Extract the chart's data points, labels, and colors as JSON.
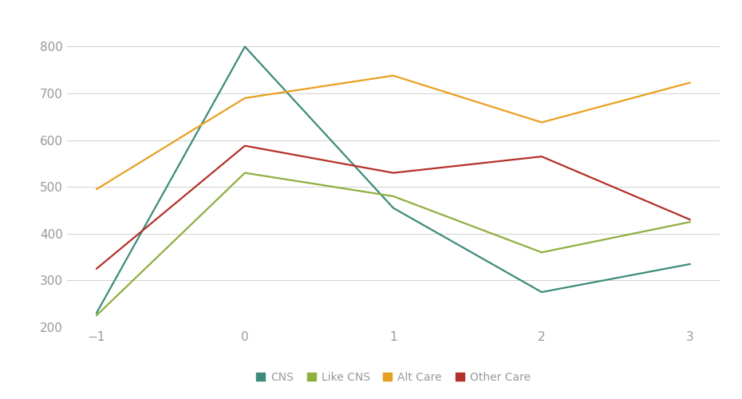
{
  "x": [
    -1,
    0,
    1,
    2,
    3
  ],
  "series": {
    "CNS": [
      230,
      800,
      455,
      275,
      335
    ],
    "Like CNS": [
      225,
      530,
      480,
      360,
      425
    ],
    "Alt Care": [
      495,
      690,
      738,
      638,
      723
    ],
    "Other Care": [
      325,
      588,
      530,
      565,
      430
    ]
  },
  "colors": {
    "CNS": "#3d8b7a",
    "Like CNS": "#8faf3e",
    "Alt Care": "#e8a020",
    "Other Care": "#b53028"
  },
  "ylim": [
    200,
    840
  ],
  "yticks": [
    200,
    300,
    400,
    500,
    600,
    700,
    800
  ],
  "xticks": [
    -1,
    0,
    1,
    2,
    3
  ],
  "background_color": "#ffffff",
  "grid_color": "#d0d0d0",
  "legend_labels": [
    "CNS",
    "Like CNS",
    "Alt Care",
    "Other Care"
  ],
  "linewidth": 1.6,
  "tick_label_color": "#999999",
  "tick_fontsize": 11
}
